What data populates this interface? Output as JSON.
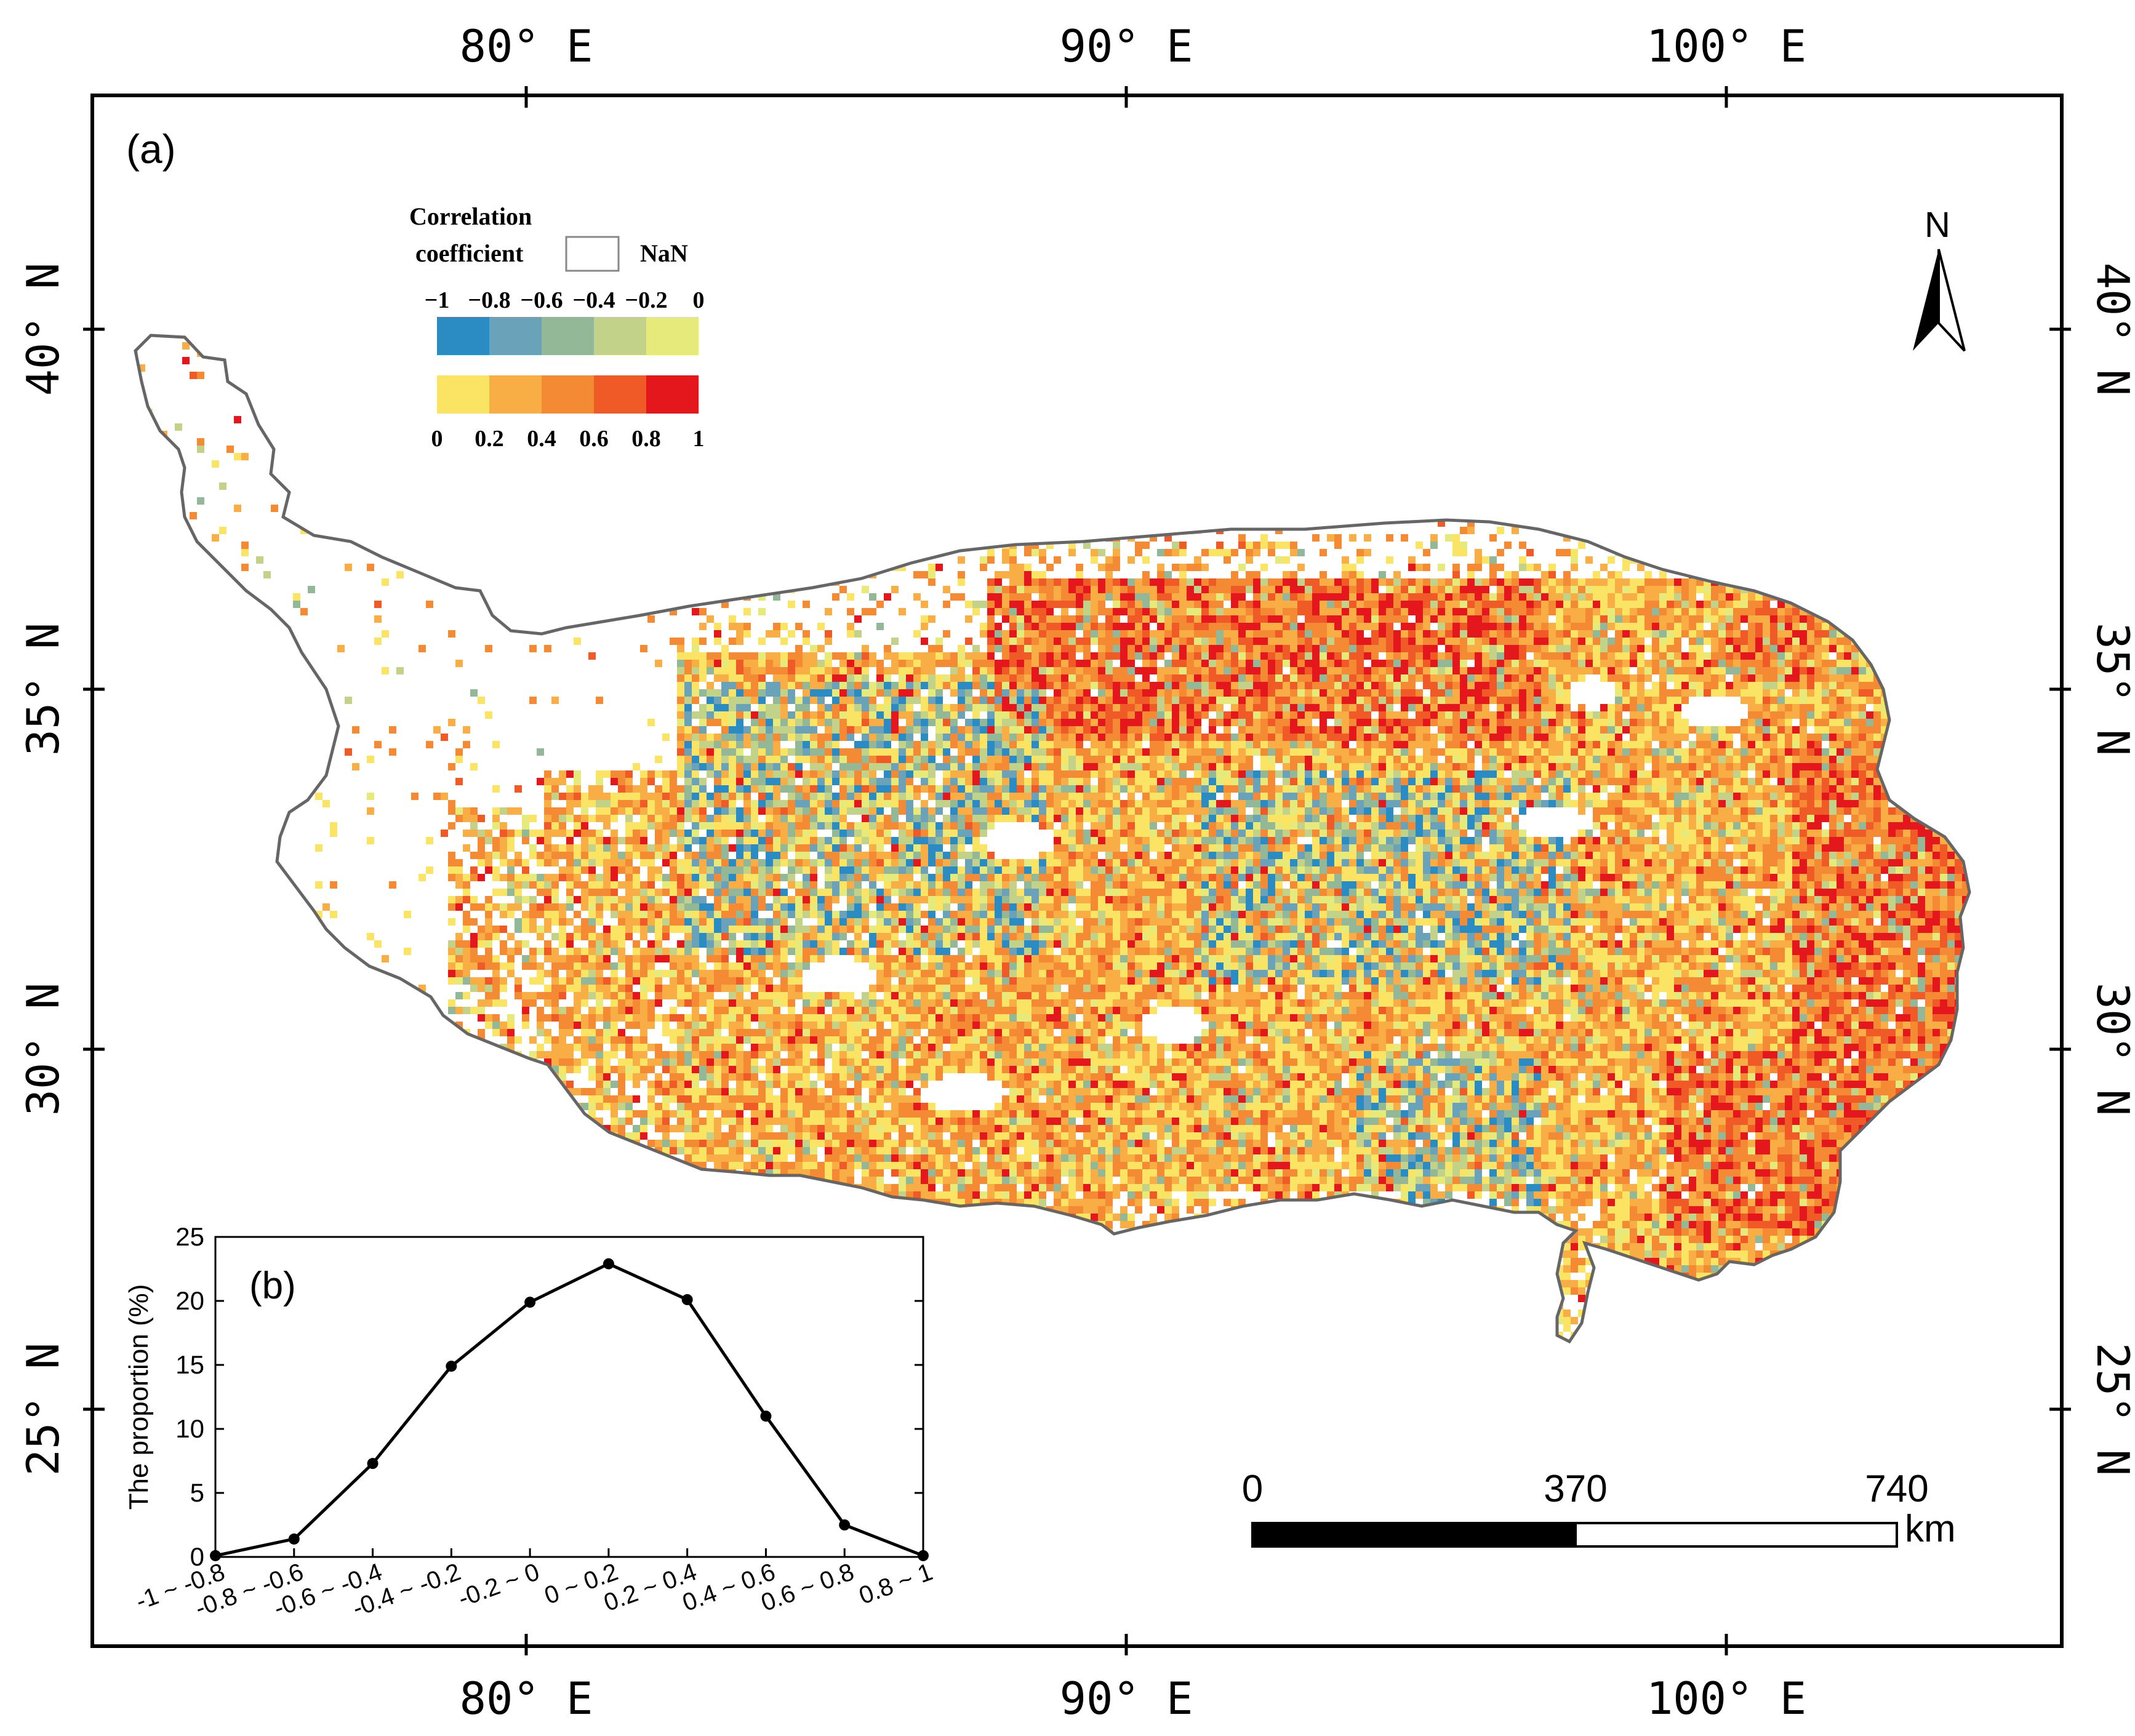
{
  "map": {
    "panel_label": "(a)",
    "lon_labels": [
      "80° E",
      "90° E",
      "100° E"
    ],
    "lat_labels": [
      "40° N",
      "35° N",
      "30° N",
      "25° N"
    ],
    "north_label": "N",
    "legend": {
      "title_line1": "Correlation",
      "title_line2": "coefficient",
      "nan_label": "NaN",
      "neg_ticks": [
        "−1",
        "−0.8",
        "−0.6",
        "−0.4",
        "−0.2",
        "0"
      ],
      "pos_ticks": [
        "0",
        "0.2",
        "0.4",
        "0.6",
        "0.8",
        "1"
      ],
      "neg_colors": [
        "#2b8cc4",
        "#6aa3b9",
        "#93b897",
        "#c2d288",
        "#e6ea7a"
      ],
      "pos_colors": [
        "#fbe364",
        "#f9ad45",
        "#f58a35",
        "#f05a26",
        "#e3171c"
      ]
    },
    "scale_bar": {
      "ticks": [
        "0",
        "370",
        "740"
      ],
      "unit": "km"
    }
  },
  "chart_data": {
    "type": "line",
    "panel_label": "(b)",
    "title": "",
    "xlabel": "",
    "ylabel": "The proportion (%)",
    "categories": [
      "-1 ~ -0.8",
      "-0.8 ~ -0.6",
      "-0.6 ~ -0.4",
      "-0.4 ~ -0.2",
      "-0.2 ~ 0",
      "0 ~ 0.2",
      "0.2 ~ 0.4",
      "0.4 ~ 0.6",
      "0.6 ~ 0.8",
      "0.8 ~ 1"
    ],
    "values": [
      0.1,
      1.4,
      7.3,
      14.9,
      19.9,
      22.9,
      20.1,
      11.0,
      2.5,
      0.1
    ],
    "ylim": [
      0,
      25
    ],
    "yticks": [
      0,
      5,
      10,
      15,
      20,
      25
    ],
    "grid": false,
    "legend": "none"
  }
}
